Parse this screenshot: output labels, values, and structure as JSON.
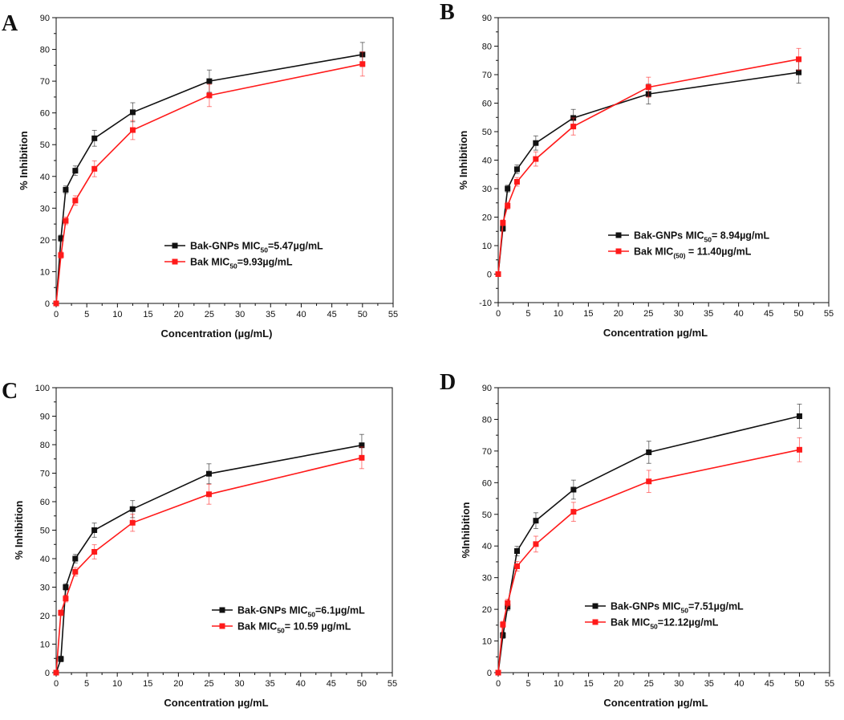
{
  "colors": {
    "series1": "#111111",
    "series2": "#ff1a1a"
  },
  "chart_data": [
    {
      "type": "line",
      "panel": "A",
      "xlabel": "Concentration (µg/mL)",
      "ylabel": "% Inhibition",
      "xlim": [
        0,
        55
      ],
      "ylim": [
        0,
        90
      ],
      "xticks": [
        0,
        5,
        10,
        15,
        20,
        25,
        30,
        35,
        40,
        45,
        50,
        55
      ],
      "yticks": [
        0,
        10,
        20,
        30,
        40,
        50,
        60,
        70,
        80,
        90
      ],
      "x": [
        0,
        0.78,
        1.56,
        3.125,
        6.25,
        12.5,
        25,
        50
      ],
      "series": [
        {
          "name": "Bak-GNPs",
          "legend_pre": "Bak-GNPs MIC",
          "legend_sub": "50",
          "legend_post": "=5.47µg/mL",
          "values": [
            0,
            20.5,
            35.8,
            41.8,
            52,
            60.2,
            70,
            78.4
          ],
          "errors": [
            0,
            1,
            1.2,
            1.5,
            2.5,
            3,
            3.5,
            3.8
          ]
        },
        {
          "name": "Bak",
          "legend_pre": "Bak MIC",
          "legend_sub": "50",
          "legend_post": "=9.93µg/mL",
          "values": [
            0,
            15.2,
            26,
            32.4,
            42.4,
            54.6,
            65.5,
            75.4
          ],
          "errors": [
            0,
            1,
            1.2,
            1.5,
            2.5,
            3,
            3.5,
            3.8
          ]
        }
      ]
    },
    {
      "type": "line",
      "panel": "B",
      "xlabel": "Concentration µg/mL",
      "ylabel": "% Inhibition",
      "xlim": [
        0,
        55
      ],
      "ylim": [
        -10,
        90
      ],
      "xticks": [
        0,
        5,
        10,
        15,
        20,
        25,
        30,
        35,
        40,
        45,
        50,
        55
      ],
      "yticks": [
        -10,
        0,
        10,
        20,
        30,
        40,
        50,
        60,
        70,
        80,
        90
      ],
      "x": [
        0,
        0.78,
        1.56,
        3.125,
        6.25,
        12.5,
        25,
        50
      ],
      "series": [
        {
          "name": "Bak-GNPs",
          "legend_pre": "Bak-GNPs MIC",
          "legend_sub": "50",
          "legend_post": "= 8.94µg/mL",
          "values": [
            0,
            16,
            30,
            36.8,
            46,
            54.8,
            63.2,
            70.8
          ],
          "errors": [
            0,
            1,
            1.2,
            1.5,
            2.5,
            3,
            3.5,
            3.8
          ]
        },
        {
          "name": "Bak",
          "legend_pre": "Bak  MIC",
          "legend_sub": "(50)",
          "legend_post": " = 11.40µg/mL",
          "values": [
            0,
            18,
            24,
            32.4,
            40.4,
            51.8,
            65.6,
            75.4
          ],
          "errors": [
            0,
            1,
            1.2,
            1.5,
            2.5,
            3,
            3.5,
            3.8
          ]
        }
      ]
    },
    {
      "type": "line",
      "panel": "C",
      "xlabel": "Concentration µg/mL",
      "ylabel": "% Inhibition",
      "xlim": [
        0,
        55
      ],
      "ylim": [
        0,
        100
      ],
      "xticks": [
        0,
        5,
        10,
        15,
        20,
        25,
        30,
        35,
        40,
        45,
        50,
        55
      ],
      "yticks": [
        0,
        10,
        20,
        30,
        40,
        50,
        60,
        70,
        80,
        90,
        100
      ],
      "x": [
        0,
        0.78,
        1.56,
        3.125,
        6.25,
        12.5,
        25,
        50
      ],
      "series": [
        {
          "name": "Bak-GNPs",
          "legend_pre": "Bak-GNPs MIC",
          "legend_sub": "50",
          "legend_post": "=6.1µg/mL",
          "values": [
            0,
            4.8,
            30,
            40,
            50,
            57.4,
            69.8,
            79.8
          ],
          "errors": [
            0,
            1,
            1.2,
            1.5,
            2.5,
            3,
            3.5,
            3.8
          ]
        },
        {
          "name": "Bak",
          "legend_pre": "Bak MIC",
          "legend_sub": "50",
          "legend_post": "= 10.59 µg/mL",
          "values": [
            0,
            21,
            26,
            35.4,
            42.4,
            52.6,
            62.6,
            75.4
          ],
          "errors": [
            0,
            1,
            1.2,
            1.5,
            2.5,
            3,
            3.5,
            3.8
          ]
        }
      ]
    },
    {
      "type": "line",
      "panel": "D",
      "xlabel": "Concentration µg/mL",
      "ylabel": "%Inhibition",
      "xlim": [
        0,
        55
      ],
      "ylim": [
        0,
        90
      ],
      "xticks": [
        0,
        5,
        10,
        15,
        20,
        25,
        30,
        35,
        40,
        45,
        50,
        55
      ],
      "yticks": [
        0,
        10,
        20,
        30,
        40,
        50,
        60,
        70,
        80,
        90
      ],
      "x": [
        0,
        0.78,
        1.56,
        3.125,
        6.25,
        12.5,
        25,
        50
      ],
      "series": [
        {
          "name": "Bak-GNPs",
          "legend_pre": "Bak-GNPs MIC",
          "legend_sub": "50",
          "legend_post": "=7.51µg/mL",
          "values": [
            0,
            11.8,
            20.8,
            38.4,
            48,
            57.8,
            69.6,
            81
          ],
          "errors": [
            0,
            1,
            1.2,
            1.5,
            2.5,
            3,
            3.5,
            3.8
          ]
        },
        {
          "name": "Bak",
          "legend_pre": "Bak MIC",
          "legend_sub": "50",
          "legend_post": "=12.12µg/mL",
          "values": [
            0,
            15.2,
            22,
            33.6,
            40.6,
            50.8,
            60.4,
            70.4
          ],
          "errors": [
            0,
            1,
            1.2,
            1.5,
            2.5,
            3,
            3.5,
            3.8
          ]
        }
      ]
    }
  ]
}
